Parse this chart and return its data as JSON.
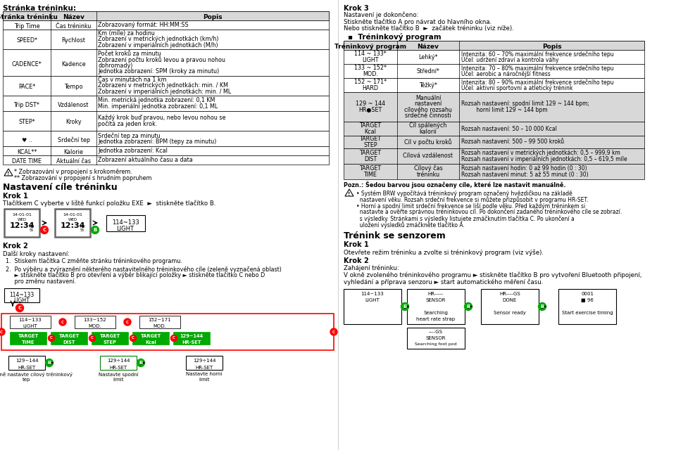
{
  "title_left": "Stránka tréninku:",
  "bg_color": "#ffffff",
  "text_color": "#000000",
  "table1_header": [
    "Stránka tréninku",
    "Název",
    "Popis"
  ],
  "table1_rows": [
    [
      "Trip Time",
      "Čas tréninku",
      "Zobrazovaný formát: HH:MM:SS"
    ],
    [
      "SPEED*",
      "Rychlost",
      "Km (míle) za hodinu\nZobrazení v metrických jednotkách (km/h)\nZobrazení v imperiálních jednotkách (M/h)"
    ],
    [
      "CADENCE*",
      "Kadence",
      "Počet kroků za minutu\nZobrazení počtu kroků levou a pravou nohou\ndohromady)\nJednotka zobrazení: SPM (kroky za minutu)"
    ],
    [
      "PACE*",
      "Tempo",
      "Čas v minutách na 1 km\nZobrazení v metrických jednotkách: min. / KM\nZobrazení v imperiálních jednotkách: min. / ML"
    ],
    [
      "Trip DST*",
      "Vzdálenost",
      "Min. metrická jednotka zobrazení: 0,1 KM\nMin. imperiální jednotka zobrazení: 0,1 ML"
    ],
    [
      "STEP*",
      "Kroky",
      "Každý krok buď pravou, nebo levou nohou se\npočítá za jeden krok."
    ],
    [
      "♥ ..",
      "Srdeční tep",
      "Srdeční tep za minutu\nJednotka zobrazení: BPM (tepy za minutu)"
    ],
    [
      "KCAL**",
      "Kalorie",
      "Jednotka zobrazení: Kcal"
    ],
    [
      "DATE TIME",
      "Aktuální čas",
      "Zobrazení aktuálního času a data"
    ]
  ],
  "table1_row_heights": [
    13,
    13,
    28,
    38,
    28,
    22,
    28,
    22,
    13,
    13
  ],
  "note1_lines": [
    "* Zobrazování v propojení s krokoměrem.",
    "** Zobrazování v propojení s hrudním popruhem"
  ],
  "section_title_left": "Nastavení cíle tréninku",
  "krok1_title": "Krok 1",
  "krok1_text": "Tlačítkem C vyberte v liště funkcí položku EXE  ►  stiskněte tlačítko B.",
  "krok2_title": "Krok 2",
  "krok2_title2": "Další kroky nastavení:",
  "krok2_list": [
    "Stiskem tlačítka C změňte stránku tréninkového programu.",
    "Po výběru a zvýraznění některého nastavitelného tréninkového cíle (zeleně vyznačená oblast)\n► stiskněte tlačítko B pro otevření a výběr blikající položky ► stiskněte tlačítko C nebo D\npro změnu nastavení."
  ],
  "right_krok3_title": "Krok 3",
  "right_krok3_lines": [
    "Nastavení je dokončeno:",
    "Stiskněte tlačítko A pro návrat do hlavního okna.",
    "Nebo stiskněte tlačítko B  ►  začátek tréninku (viz níže)."
  ],
  "trenink_bullet": "▪  Tréninkový program",
  "table2_header": [
    "Tréninkový program",
    "Název",
    "Popis"
  ],
  "table2_rows": [
    [
      "114 ~ 133*\nLIGHT",
      "Lehký*",
      "Intenzita: 60 – 70% maximální frekvence srdečního tepu\nÚčel: udržení zdraví a kontrola váhy"
    ],
    [
      "133 ~ 152*\nMOD.",
      "Střední*",
      "Intenzita: 70 – 80% maximální frekvence srdečního tepu\nÚčel: aerobic a náročnější fitness"
    ],
    [
      "152 ~ 171*\nHARD",
      "Těžký*",
      "Intenzita: 80 – 90% maximální frekvence srdečního tepu\nÚčel: aktivní sportovní a atletický trénink"
    ],
    [
      "129 ~ 144\nHR●SET",
      "Manuální\nnastavení\ncílového rozsahu\nsrdečné činnosti",
      "Rozsah nastavení: spodní limit 129 ~ 144 bpm;\n         horní limit 129 ~ 144 bpm"
    ],
    [
      "TARGET\nKcal",
      "Cíl spálených\nkalorií",
      "Rozsah nastavení: 50 – 10 000 Kcal"
    ],
    [
      "TARGET\nSTEP",
      "Cíl v počtu kroků",
      "Rozsah nastavení: 500 – 99 500 kroků"
    ],
    [
      "TARGET\nDIST",
      "Cílová vzdálenost",
      "Rozsah nastavení v metrických jednotkách: 0,5 – 999,9 km\nRozsah nastavení v imperiálních jednotkách: 0,5 – 619,5 míle"
    ],
    [
      "TARGET\nTIME",
      "Cílový čas\ntréninku",
      "Rozsah nastavení hodin: 0 až 99 hodin (0 : 30)\nRozsah nastavení minut: 5 až 55 minut (0 : 30)"
    ]
  ],
  "table2_row_heights": [
    13,
    20,
    20,
    20,
    42,
    20,
    18,
    22,
    22
  ],
  "table2_gray_rows": [
    3,
    4,
    5,
    6,
    7
  ],
  "table2_note": "Pozn.: Šedou barvou jsou označeny cíle, které lze nastavit manuálně.",
  "right_note_lines": [
    "• Systém BRW vypočítává tréninkový program označený hvězdičkou na základě",
    "  nastavení věku. Rozsah srdeční frekvence si můžete přizpůsobit v programu HR-SET.",
    "• Horní a spodní limit srdeční frekvence se liší podle věku. Před každým tréninkem si",
    "  nastavte a ověřte správnou tréninkovou cíl. Po dokončení zadaného tréninkového cíle se zobrazí.",
    "  s výsledky. Stránkami s výsledky listujete zmáčknutím tlačítka C. Po ukončení a",
    "  uložení výsledků zmáčkněte tlačítko A."
  ],
  "right_sensor_title": "Trénink se senzorem",
  "right_sensor_krok1": "Krok 1",
  "right_sensor_krok1_text": "Otevřete režim tréninku a zvolte si tréninkový program (viz výše).",
  "right_sensor_krok2": "Krok 2",
  "right_sensor_krok2_lines": [
    "Zahájení tréninku:",
    "V okně zvoleného tréninkového programu ► stiskněte tlačítko B pro vytvoření Bluetooth připojení,",
    "vyhledání a příprava senzoru ► start automatického měření času."
  ],
  "sensor_diag_items": [
    {
      "text": "114~133\nLIGHT",
      "label": ""
    },
    {
      "text": "HR-----\nSENSOR\n\nSearching\nheart rate strap",
      "label": ""
    },
    {
      "text": "HR----GS\nDONE\n\nSensor ready",
      "label": ""
    },
    {
      "text": "0001\n■ 96\n\nStart exercise timing",
      "label": ""
    }
  ]
}
